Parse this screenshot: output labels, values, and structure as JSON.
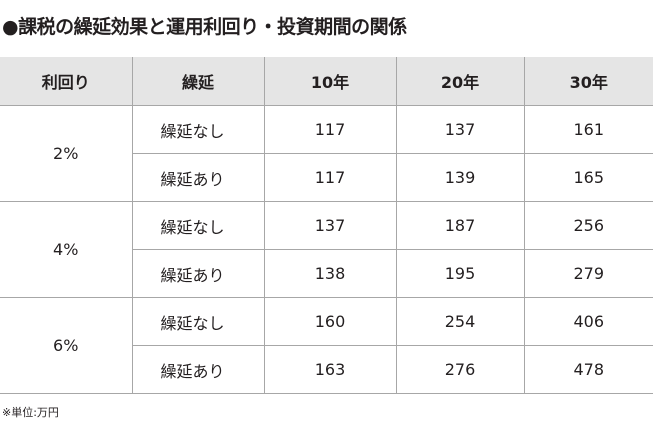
{
  "title": "●課税の繰延効果と運用利回り・投資期間の関係",
  "headers": [
    "利回り",
    "繰延",
    "10年",
    "20年",
    "30年"
  ],
  "groups": [
    {
      "rate": "2%",
      "rows": [
        {
          "deferral": "繰延なし",
          "y10": "117",
          "y20": "137",
          "y30": "161"
        },
        {
          "deferral": "繰延あり",
          "y10": "117",
          "y20": "139",
          "y30": "165"
        }
      ]
    },
    {
      "rate": "4%",
      "rows": [
        {
          "deferral": "繰延なし",
          "y10": "137",
          "y20": "187",
          "y30": "256"
        },
        {
          "deferral": "繰延あり",
          "y10": "138",
          "y20": "195",
          "y30": "279"
        }
      ]
    },
    {
      "rate": "6%",
      "rows": [
        {
          "deferral": "繰延なし",
          "y10": "160",
          "y20": "254",
          "y30": "406"
        },
        {
          "deferral": "繰延あり",
          "y10": "163",
          "y20": "276",
          "y30": "478"
        }
      ]
    }
  ],
  "note": "※単位:万円"
}
